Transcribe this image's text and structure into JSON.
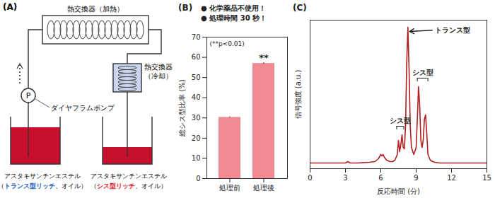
{
  "diagram": {
    "label": "(A)",
    "heater": "熱交換器（加熱）",
    "cooler": [
      "熱交換器",
      "（冷却）"
    ],
    "pump": "P",
    "pump_label": "ダイヤフラムポンプ",
    "liquid_color": "#c8102e",
    "source": {
      "name": "アスタキサンチンエステル",
      "detail": [
        "（",
        "トランス型リッチ",
        "、オイル）"
      ],
      "color": "#1f5fbf"
    },
    "product": {
      "name": "アスタキサンチンエステル",
      "detail": [
        "（",
        "シス型リッチ",
        "、オイル）"
      ],
      "color": "#e0202a"
    }
  },
  "chart_data": [
    {
      "type": "bar",
      "label": "(B)",
      "notes": [
        "● 化学薬品不使用！",
        "● 処理時間 30 秒！"
      ],
      "annotation": "(**p<0.01)",
      "ylabel": "総シス型比率 (%)",
      "categories": [
        "処理前",
        "処理後"
      ],
      "values": [
        30.3,
        57.0
      ],
      "errors": [
        0.3,
        0.4
      ],
      "significance": {
        "category": "処理後",
        "text": "**"
      },
      "color": "#ef8a93",
      "ylim": [
        0,
        70
      ],
      "yticks": [
        0,
        10,
        20,
        30,
        40,
        50,
        60,
        70
      ]
    },
    {
      "type": "line",
      "label": "(C)",
      "xlabel": "反応時間 (分)",
      "ylabel": "信号強度 (a.u.)",
      "x": [
        0,
        1,
        2,
        3,
        3.2,
        3.4,
        4,
        5,
        5.5,
        5.8,
        6.0,
        6.1,
        6.2,
        6.3,
        6.5,
        6.8,
        7.0,
        7.2,
        7.4,
        7.5,
        7.6,
        7.7,
        7.8,
        7.9,
        8.0,
        8.1,
        8.2,
        8.3,
        8.4,
        8.5,
        8.6,
        8.8,
        9.0,
        9.1,
        9.2,
        9.3,
        9.4,
        9.5,
        9.6,
        9.7,
        9.8,
        9.9,
        10.0,
        10.2,
        10.4,
        10.6,
        11,
        12,
        13,
        14,
        15
      ],
      "values": [
        0.04,
        0.04,
        0.04,
        0.04,
        0.05,
        0.04,
        0.04,
        0.045,
        0.05,
        0.07,
        0.1,
        0.09,
        0.1,
        0.08,
        0.06,
        0.05,
        0.05,
        0.06,
        0.1,
        0.2,
        0.12,
        0.17,
        0.24,
        0.15,
        0.14,
        0.3,
        0.75,
        1.0,
        0.7,
        0.3,
        0.15,
        0.1,
        0.15,
        0.35,
        0.58,
        0.45,
        0.2,
        0.15,
        0.2,
        0.35,
        0.38,
        0.25,
        0.1,
        0.06,
        0.05,
        0.045,
        0.04,
        0.04,
        0.04,
        0.04,
        0.04
      ],
      "color": "#b0201f",
      "xlim": [
        0,
        15
      ],
      "xticks": [
        0,
        3,
        6,
        9,
        12,
        15
      ],
      "ylim": [
        0,
        1.05
      ],
      "yticks": [],
      "tick_labels": "x",
      "annotations": [
        {
          "text": "トランス型",
          "x": 10.6,
          "y": 0.98,
          "arrow_to": [
            8.45,
            0.97
          ]
        },
        {
          "text": "シス型",
          "bracket": [
            7.35,
            7.95
          ],
          "y": 0.3
        },
        {
          "text": "シス型",
          "bracket": [
            9.1,
            10.0
          ],
          "y": 0.64
        }
      ]
    }
  ]
}
